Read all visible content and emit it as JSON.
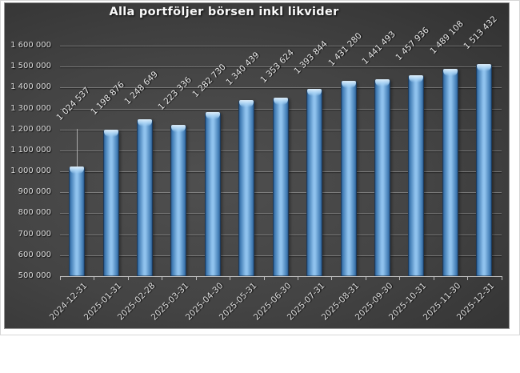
{
  "chart_data": {
    "type": "bar",
    "title": "Alla portföljer börsen inkl likvider",
    "categories": [
      "2024-12-31",
      "2025-01-31",
      "2025-02-28",
      "2025-03-31",
      "2025-04-30",
      "2025-05-31",
      "2025-06-30",
      "2025-07-31",
      "2025-08-31",
      "2025-09-30",
      "2025-10-31",
      "2025-11-30",
      "2025-12-31"
    ],
    "values": [
      1024537,
      1198876,
      1248649,
      1223336,
      1282730,
      1340439,
      1353624,
      1393844,
      1431280,
      1441493,
      1457936,
      1489108,
      1513432
    ],
    "value_labels": [
      "1 024 537",
      "1 198 876",
      "1 248 649",
      "1 223 336",
      "1 282 730",
      "1 340 439",
      "1 353 624",
      "1 393 844",
      "1 431 280",
      "1 441 493",
      "1 457 936",
      "1 489 108",
      "1 513 432"
    ],
    "xlabel": "",
    "ylabel": "",
    "y_axis": {
      "min": 500000,
      "max": 1600000,
      "step": 100000,
      "tick_labels": [
        "500 000",
        "600 000",
        "700 000",
        "800 000",
        "900 000",
        "1 000 000",
        "1 100 000",
        "1 200 000",
        "1 300 000",
        "1 400 000",
        "1 500 000",
        "1 600 000"
      ]
    },
    "grid": true,
    "legend": "none",
    "layout": {
      "bar_fill": "#8fc2ed",
      "bar_edge": "#24486f",
      "bar_cap_highlight": "#e2f1fc",
      "background_light": "#4f4f4f",
      "background_dark": "#252525",
      "gridline_color": "rgba(255,255,255,0.28)",
      "axis_line_color": "#bdbdbd",
      "tick_label_color": "#dcdcdc",
      "title_color": "#fafafa",
      "moved_label_index": 0,
      "moved_label_dy": -39
    }
  }
}
